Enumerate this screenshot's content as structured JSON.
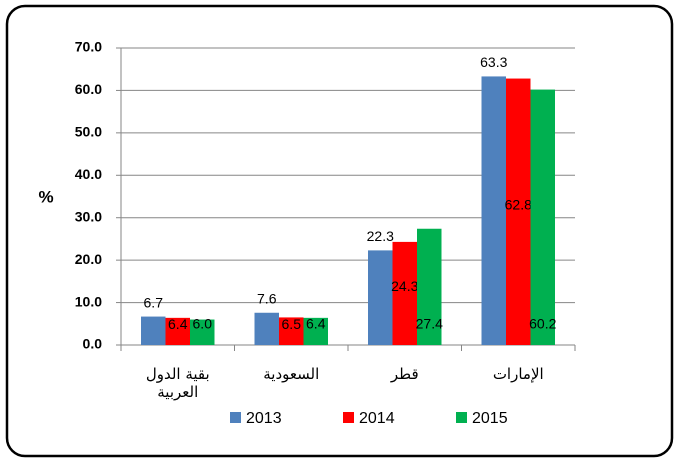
{
  "chart_data": {
    "type": "bar",
    "y_label": "%",
    "categories": [
      "بقية الدول العربية",
      "السعودية",
      "قطر",
      "الإمارات"
    ],
    "series": [
      {
        "name": "2013",
        "color": "#4f81bd",
        "values": [
          6.7,
          7.6,
          22.3,
          63.3
        ],
        "value_labels": [
          "6.7",
          "7.6",
          "22.3",
          "63.3"
        ]
      },
      {
        "name": "2014",
        "color": "#ff0000",
        "values": [
          6.4,
          6.5,
          24.3,
          62.8
        ],
        "value_labels": [
          "6.4",
          "6.5",
          "24.3",
          "62.8"
        ]
      },
      {
        "name": "2015",
        "color": "#00b050",
        "values": [
          6.0,
          6.4,
          27.4,
          60.2
        ],
        "value_labels": [
          "6.0",
          "6.4",
          "27.4",
          "60.2"
        ]
      }
    ],
    "ylim": [
      0,
      70
    ],
    "yticks": [
      {
        "value": 0,
        "label": "0.0"
      },
      {
        "value": 10,
        "label": "10.0"
      },
      {
        "value": 20,
        "label": "20.0"
      },
      {
        "value": 30,
        "label": "30.0"
      },
      {
        "value": 40,
        "label": "40.0"
      },
      {
        "value": 50,
        "label": "50.0"
      },
      {
        "value": 60,
        "label": "60.0"
      },
      {
        "value": 70,
        "label": "70.0"
      }
    ],
    "grid": true,
    "legend": "bottom"
  }
}
